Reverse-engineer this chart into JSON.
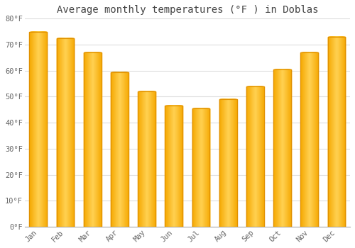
{
  "title": "Average monthly temperatures (°F ) in Doblas",
  "months": [
    "Jan",
    "Feb",
    "Mar",
    "Apr",
    "May",
    "Jun",
    "Jul",
    "Aug",
    "Sep",
    "Oct",
    "Nov",
    "Dec"
  ],
  "values": [
    75,
    72.5,
    67,
    59.5,
    52,
    46.5,
    45.5,
    49,
    54,
    60.5,
    67,
    73
  ],
  "bar_color_top": "#F5A800",
  "bar_color_mid": "#FFD050",
  "bar_color_bottom": "#F5A800",
  "bar_edge_color": "#E09000",
  "background_color": "#FFFFFF",
  "plot_bg_color": "#FFFFFF",
  "grid_color": "#DDDDDD",
  "tick_label_color": "#666666",
  "title_color": "#444444",
  "ylim": [
    0,
    80
  ],
  "yticks": [
    0,
    10,
    20,
    30,
    40,
    50,
    60,
    70,
    80
  ],
  "ytick_labels": [
    "0°F",
    "10°F",
    "20°F",
    "30°F",
    "40°F",
    "50°F",
    "60°F",
    "70°F",
    "80°F"
  ],
  "bar_width": 0.65,
  "figsize": [
    5.0,
    3.5
  ],
  "dpi": 100
}
